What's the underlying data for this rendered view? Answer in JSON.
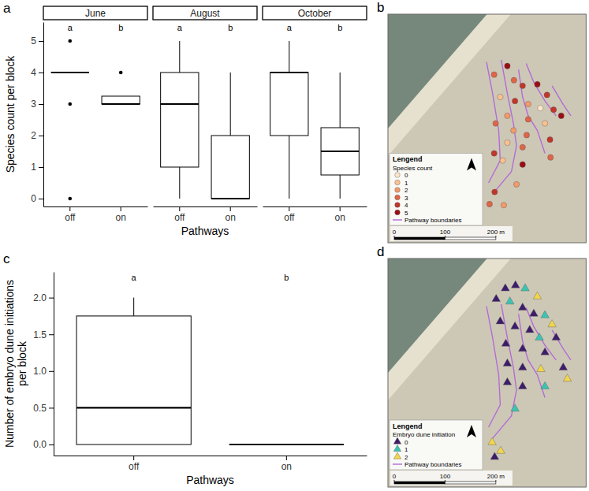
{
  "chart_data": [
    {
      "panel": "a",
      "type": "box",
      "facets": [
        {
          "title": "June",
          "boxes": [
            {
              "min": 4,
              "q1": 4,
              "median": 4,
              "q3": 4,
              "max": 4,
              "outliers": [
                0,
                3,
                5
              ],
              "letter": "a"
            },
            {
              "min": 3,
              "q1": 3,
              "median": 3,
              "q3": 3.25,
              "max": 3.25,
              "outliers": [
                4
              ],
              "letter": "b"
            }
          ]
        },
        {
          "title": "August",
          "boxes": [
            {
              "min": 0,
              "q1": 1,
              "median": 3,
              "q3": 4,
              "max": 5,
              "outliers": [],
              "letter": "a"
            },
            {
              "min": 0,
              "q1": 0,
              "median": 0,
              "q3": 2,
              "max": 4,
              "outliers": [],
              "letter": "b"
            }
          ]
        },
        {
          "title": "October",
          "boxes": [
            {
              "min": 0,
              "q1": 2,
              "median": 4,
              "q3": 4,
              "max": 5,
              "outliers": [],
              "letter": "a"
            },
            {
              "min": 0,
              "q1": 0.75,
              "median": 1.5,
              "q3": 2.25,
              "max": 4,
              "outliers": [],
              "letter": "b"
            }
          ]
        }
      ],
      "categories": [
        "off",
        "on"
      ],
      "x_label": "Pathways",
      "y_label": "Species count per block",
      "ylim": [
        -0.25,
        5.6
      ],
      "yticks": [
        0,
        1,
        2,
        3,
        4,
        5
      ]
    },
    {
      "panel": "b",
      "type": "scatter",
      "marker": "circle",
      "xlim": [
        0,
        390
      ],
      "ylim": [
        0,
        450
      ],
      "tick_labels": false,
      "x": [
        235,
        209,
        248,
        265,
        294,
        313,
        221,
        250,
        276,
        300,
        326,
        235,
        276,
        309,
        341,
        212,
        247,
        273,
        235,
        265,
        319,
        209,
        226,
        265,
        320,
        253,
        210,
        200,
        228
      ],
      "y": [
        348,
        331,
        320,
        309,
        312,
        291,
        287,
        279,
        273,
        265,
        262,
        250,
        243,
        235,
        250,
        235,
        221,
        212,
        197,
        188,
        203,
        176,
        162,
        154,
        168,
        115,
        100,
        76,
        74
      ],
      "values": [
        5,
        3,
        3,
        4,
        5,
        4,
        1,
        4,
        2,
        0,
        4,
        2,
        3,
        1,
        5,
        3,
        2,
        3,
        1,
        3,
        4,
        4,
        1,
        5,
        3,
        2,
        4,
        3,
        2
      ],
      "levels": [
        0,
        1,
        2,
        3,
        4,
        5
      ],
      "level_colors": [
        "#fee5c9",
        "#fcc08f",
        "#f39a6b",
        "#e06548",
        "#c2352a",
        "#9b0d14"
      ],
      "legend": "bottom left",
      "legend_title": "Lengend",
      "color_title": "Species count",
      "pathways": {
        "name": "Pathway boundaries",
        "color": "#b36bd6",
        "lines": [
          {
            "x": [
              194,
              206,
              218,
              221,
              198
            ],
            "y": [
              356,
              294,
              221,
              162,
              118
            ]
          },
          {
            "x": [
              223,
              235,
              247,
              253,
              243,
              206
            ],
            "y": [
              360,
              294,
              235,
              191,
              140,
              96
            ]
          },
          {
            "x": [
              257,
              265,
              276,
              294,
              309
            ],
            "y": [
              341,
              287,
              250,
              221,
              176
            ]
          },
          {
            "x": [
              272,
              287,
              309,
              331
            ],
            "y": [
              353,
              316,
              279,
              250
            ]
          },
          {
            "x": [
              323,
              345,
              360
            ],
            "y": [
              309,
              272,
              250
            ]
          }
        ]
      },
      "scale_bar": {
        "ticks": [
          0,
          100,
          {
            "value": 200,
            "label": "200 m"
          }
        ]
      }
    },
    {
      "panel": "c",
      "type": "box",
      "boxes": [
        {
          "min": 0,
          "q1": 0,
          "median": 0.5,
          "q3": 1.75,
          "max": 2,
          "outliers": [],
          "letter": "a"
        },
        {
          "min": 0,
          "q1": 0,
          "median": 0,
          "q3": 0,
          "max": 0,
          "outliers": [],
          "letter": "b"
        }
      ],
      "categories": [
        "off",
        "on"
      ],
      "x_label": "Pathways",
      "y_label": "Number of embryo dune initiations per block",
      "ylim": [
        -0.15,
        2.35
      ],
      "yticks": [
        {
          "value": 0,
          "label": "0.0"
        },
        {
          "value": 0.5,
          "label": "0.5"
        },
        {
          "value": 1,
          "label": "1.0"
        },
        {
          "value": 1.5,
          "label": "1.5"
        },
        {
          "value": 2,
          "label": "2.0"
        }
      ]
    },
    {
      "panel": "d",
      "type": "scatter",
      "marker": "triangle",
      "xlim": [
        0,
        390
      ],
      "ylim": [
        0,
        450
      ],
      "tick_labels": false,
      "x": [
        231,
        251,
        270,
        294,
        213,
        240,
        265,
        287,
        309,
        323,
        221,
        250,
        279,
        298,
        331,
        232,
        265,
        309,
        235,
        265,
        301,
        345,
        353,
        235,
        265,
        309,
        250,
        205,
        222,
        210
      ],
      "y": [
        391,
        397,
        391,
        375,
        370,
        365,
        353,
        341,
        338,
        320,
        326,
        316,
        309,
        294,
        294,
        282,
        272,
        265,
        243,
        235,
        232,
        235,
        213,
        206,
        198,
        198,
        154,
        88,
        71,
        59
      ],
      "values": [
        0,
        0,
        1,
        2,
        0,
        1,
        0,
        0,
        1,
        2,
        0,
        0,
        0,
        1,
        0,
        0,
        0,
        0,
        0,
        0,
        2,
        0,
        2,
        0,
        0,
        1,
        1,
        2,
        2,
        0
      ],
      "levels": [
        0,
        1,
        2
      ],
      "level_colors": [
        "#3d1c6b",
        "#3cc4b2",
        "#f2d64b"
      ],
      "legend": "bottom left",
      "legend_title": "Lengend",
      "color_title": "Embryo dune initiation",
      "pathways": {
        "name": "Pathway boundaries",
        "color": "#b36bd6",
        "lines": [
          {
            "x": [
              194,
              206,
              218,
              221,
              198
            ],
            "y": [
              356,
              294,
              221,
              162,
              118
            ]
          },
          {
            "x": [
              223,
              235,
              247,
              253,
              243,
              206
            ],
            "y": [
              360,
              294,
              235,
              191,
              140,
              96
            ]
          },
          {
            "x": [
              257,
              265,
              276,
              294,
              309
            ],
            "y": [
              341,
              287,
              250,
              221,
              176
            ]
          },
          {
            "x": [
              272,
              287,
              309,
              331
            ],
            "y": [
              353,
              316,
              279,
              250
            ]
          },
          {
            "x": [
              323,
              345,
              360
            ],
            "y": [
              309,
              272,
              250
            ]
          }
        ]
      },
      "scale_bar": {
        "ticks": [
          0,
          100,
          {
            "value": 200,
            "label": "200 m"
          }
        ]
      }
    }
  ]
}
